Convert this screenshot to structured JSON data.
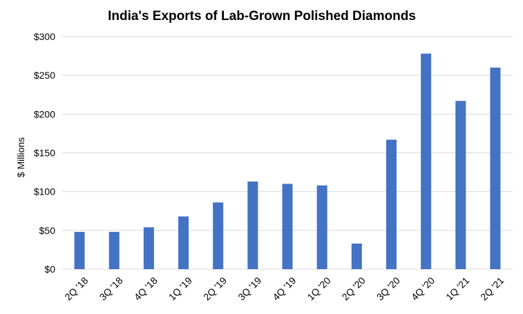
{
  "chart_data": {
    "type": "bar",
    "title": "India's Exports of Lab-Grown Polished Diamonds",
    "xlabel": "",
    "ylabel": "$ Millions",
    "categories": [
      "2Q '18",
      "3Q '18",
      "4Q '18",
      "1Q '19",
      "2Q '19",
      "3Q '19",
      "4Q '19",
      "1Q '20",
      "2Q '20",
      "3Q '20",
      "4Q '20",
      "1Q '21",
      "2Q '21"
    ],
    "values": [
      48,
      48,
      54,
      68,
      86,
      113,
      110,
      108,
      33,
      167,
      278,
      217,
      260
    ],
    "ylim": [
      0,
      300
    ],
    "yticks": [
      0,
      50,
      100,
      150,
      200,
      250,
      300
    ],
    "ytick_labels": [
      "$0",
      "$50",
      "$100",
      "$150",
      "$200",
      "$250",
      "$300"
    ],
    "grid": true,
    "bar_color": "#4472c4"
  }
}
